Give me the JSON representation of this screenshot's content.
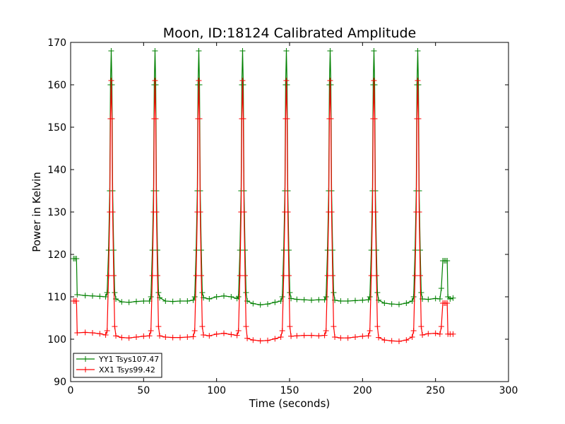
{
  "chart_data": {
    "type": "line",
    "title": "Moon, ID:18124 Calibrated Amplitude",
    "xlabel": "Time (seconds)",
    "ylabel": "Power in Kelvin",
    "xlim": [
      0,
      300
    ],
    "ylim": [
      90,
      170
    ],
    "xticks": [
      0,
      50,
      100,
      150,
      200,
      250,
      300
    ],
    "yticks": [
      90,
      100,
      110,
      120,
      130,
      140,
      150,
      160,
      170
    ],
    "grid": false,
    "legend_position": "lower-left",
    "peak_times": [
      27.5,
      57.5,
      87.5,
      117.5,
      147.5,
      177.5,
      207.5,
      237.5
    ],
    "series": [
      {
        "name": "YY1 Tsys107.47",
        "color": "#008000",
        "marker": "plus",
        "points": [
          [
            2,
            119
          ],
          [
            3,
            119
          ],
          [
            4,
            119
          ],
          [
            4.5,
            110.5
          ],
          [
            10,
            110.3
          ],
          [
            15,
            110.2
          ],
          [
            20,
            110.1
          ],
          [
            24,
            110
          ],
          [
            25,
            111
          ],
          [
            26,
            121
          ],
          [
            26.8,
            135
          ],
          [
            27.3,
            160
          ],
          [
            27.8,
            168
          ],
          [
            28.3,
            160
          ],
          [
            28.8,
            135
          ],
          [
            29.5,
            121
          ],
          [
            30.2,
            111
          ],
          [
            31,
            109.5
          ],
          [
            35,
            108.8
          ],
          [
            40,
            108.7
          ],
          [
            45,
            108.9
          ],
          [
            50,
            109
          ],
          [
            54,
            109
          ],
          [
            55,
            110
          ],
          [
            56,
            121
          ],
          [
            56.8,
            135
          ],
          [
            57.3,
            160
          ],
          [
            57.8,
            168
          ],
          [
            58.3,
            160
          ],
          [
            58.8,
            135
          ],
          [
            59.5,
            121
          ],
          [
            60.2,
            111
          ],
          [
            61,
            109.8
          ],
          [
            65,
            109
          ],
          [
            70,
            108.9
          ],
          [
            75,
            109
          ],
          [
            80,
            109
          ],
          [
            84,
            109.2
          ],
          [
            85,
            110
          ],
          [
            86,
            121
          ],
          [
            86.8,
            135
          ],
          [
            87.3,
            160
          ],
          [
            87.8,
            168
          ],
          [
            88.3,
            160
          ],
          [
            88.8,
            135
          ],
          [
            89.5,
            121
          ],
          [
            90.2,
            111
          ],
          [
            91,
            109.8
          ],
          [
            95,
            109.5
          ],
          [
            100,
            110
          ],
          [
            105,
            110.2
          ],
          [
            110,
            110
          ],
          [
            114,
            109.6
          ],
          [
            115,
            110
          ],
          [
            116,
            121
          ],
          [
            116.8,
            135
          ],
          [
            117.3,
            160
          ],
          [
            117.8,
            168
          ],
          [
            118.3,
            160
          ],
          [
            118.8,
            135
          ],
          [
            119.5,
            121
          ],
          [
            120.2,
            111
          ],
          [
            121,
            109
          ],
          [
            125,
            108.4
          ],
          [
            130,
            108.1
          ],
          [
            135,
            108.3
          ],
          [
            140,
            108.7
          ],
          [
            144,
            109
          ],
          [
            145,
            110
          ],
          [
            146,
            121
          ],
          [
            146.8,
            135
          ],
          [
            147.3,
            160
          ],
          [
            147.8,
            168
          ],
          [
            148.3,
            160
          ],
          [
            148.8,
            135
          ],
          [
            149.5,
            121
          ],
          [
            150.2,
            111
          ],
          [
            151,
            109.6
          ],
          [
            155,
            109.4
          ],
          [
            160,
            109.3
          ],
          [
            165,
            109.2
          ],
          [
            170,
            109.3
          ],
          [
            174,
            109.3
          ],
          [
            175,
            110
          ],
          [
            176,
            121
          ],
          [
            176.8,
            135
          ],
          [
            177.3,
            160
          ],
          [
            177.8,
            168
          ],
          [
            178.3,
            160
          ],
          [
            178.8,
            135
          ],
          [
            179.5,
            121
          ],
          [
            180.2,
            111
          ],
          [
            181,
            109.2
          ],
          [
            185,
            109
          ],
          [
            190,
            109
          ],
          [
            195,
            109.1
          ],
          [
            200,
            109.2
          ],
          [
            204,
            109.3
          ],
          [
            205,
            110
          ],
          [
            206,
            121
          ],
          [
            206.8,
            135
          ],
          [
            207.3,
            160
          ],
          [
            207.8,
            168
          ],
          [
            208.3,
            160
          ],
          [
            208.8,
            135
          ],
          [
            209.5,
            121
          ],
          [
            210.2,
            111
          ],
          [
            211,
            109.2
          ],
          [
            215,
            108.5
          ],
          [
            220,
            108.3
          ],
          [
            225,
            108.2
          ],
          [
            230,
            108.5
          ],
          [
            234,
            109
          ],
          [
            235,
            110
          ],
          [
            236,
            121
          ],
          [
            236.8,
            135
          ],
          [
            237.3,
            160
          ],
          [
            237.8,
            168
          ],
          [
            238.3,
            160
          ],
          [
            238.8,
            135
          ],
          [
            239.5,
            121
          ],
          [
            240.2,
            111
          ],
          [
            241,
            109.5
          ],
          [
            245,
            109.4
          ],
          [
            250,
            109.6
          ],
          [
            253,
            109.5
          ],
          [
            254,
            112
          ],
          [
            255,
            118.5
          ],
          [
            256,
            118.5
          ],
          [
            257,
            118.5
          ],
          [
            258,
            118.5
          ],
          [
            258.5,
            110
          ],
          [
            260,
            109.5
          ],
          [
            262,
            109.7
          ]
        ]
      },
      {
        "name": "XX1 Tsys99.42",
        "color": "#ff0000",
        "marker": "plus",
        "points": [
          [
            2,
            109
          ],
          [
            3,
            109
          ],
          [
            4,
            109
          ],
          [
            4.5,
            101.5
          ],
          [
            10,
            101.6
          ],
          [
            15,
            101.5
          ],
          [
            20,
            101.3
          ],
          [
            24,
            101
          ],
          [
            25,
            102
          ],
          [
            26,
            115
          ],
          [
            26.8,
            130
          ],
          [
            27.3,
            152
          ],
          [
            27.8,
            161
          ],
          [
            28.3,
            152
          ],
          [
            28.8,
            130
          ],
          [
            29.5,
            115
          ],
          [
            30.2,
            103
          ],
          [
            31,
            100.8
          ],
          [
            35,
            100.4
          ],
          [
            40,
            100.3
          ],
          [
            45,
            100.5
          ],
          [
            50,
            100.7
          ],
          [
            54,
            100.8
          ],
          [
            55,
            102
          ],
          [
            56,
            115
          ],
          [
            56.8,
            130
          ],
          [
            57.3,
            152
          ],
          [
            57.8,
            161
          ],
          [
            58.3,
            152
          ],
          [
            58.8,
            130
          ],
          [
            59.5,
            115
          ],
          [
            60.2,
            103
          ],
          [
            61,
            100.8
          ],
          [
            65,
            100.5
          ],
          [
            70,
            100.4
          ],
          [
            75,
            100.4
          ],
          [
            80,
            100.5
          ],
          [
            84,
            100.6
          ],
          [
            85,
            102
          ],
          [
            86,
            115
          ],
          [
            86.8,
            130
          ],
          [
            87.3,
            152
          ],
          [
            87.8,
            161
          ],
          [
            88.3,
            152
          ],
          [
            88.8,
            130
          ],
          [
            89.5,
            115
          ],
          [
            90.2,
            103
          ],
          [
            91,
            101
          ],
          [
            95,
            100.8
          ],
          [
            100,
            101.2
          ],
          [
            105,
            101.4
          ],
          [
            110,
            101.1
          ],
          [
            114,
            100.9
          ],
          [
            115,
            102
          ],
          [
            116,
            115
          ],
          [
            116.8,
            130
          ],
          [
            117.3,
            152
          ],
          [
            117.8,
            161
          ],
          [
            118.3,
            152
          ],
          [
            118.8,
            130
          ],
          [
            119.5,
            115
          ],
          [
            120.2,
            103
          ],
          [
            121,
            100.2
          ],
          [
            125,
            99.8
          ],
          [
            130,
            99.6
          ],
          [
            135,
            99.7
          ],
          [
            140,
            100.1
          ],
          [
            144,
            100.5
          ],
          [
            145,
            102
          ],
          [
            146,
            115
          ],
          [
            146.8,
            130
          ],
          [
            147.3,
            152
          ],
          [
            147.8,
            161
          ],
          [
            148.3,
            152
          ],
          [
            148.8,
            130
          ],
          [
            149.5,
            115
          ],
          [
            150.2,
            103
          ],
          [
            151,
            100.7
          ],
          [
            155,
            100.8
          ],
          [
            160,
            100.9
          ],
          [
            165,
            100.9
          ],
          [
            170,
            100.8
          ],
          [
            174,
            100.9
          ],
          [
            175,
            102
          ],
          [
            176,
            115
          ],
          [
            176.8,
            130
          ],
          [
            177.3,
            152
          ],
          [
            177.8,
            161
          ],
          [
            178.3,
            152
          ],
          [
            178.8,
            130
          ],
          [
            179.5,
            115
          ],
          [
            180.2,
            103
          ],
          [
            181,
            100.5
          ],
          [
            185,
            100.3
          ],
          [
            190,
            100.3
          ],
          [
            195,
            100.5
          ],
          [
            200,
            100.7
          ],
          [
            204,
            100.8
          ],
          [
            205,
            102
          ],
          [
            206,
            115
          ],
          [
            206.8,
            130
          ],
          [
            207.3,
            152
          ],
          [
            207.8,
            161
          ],
          [
            208.3,
            152
          ],
          [
            208.8,
            130
          ],
          [
            209.5,
            115
          ],
          [
            210.2,
            103
          ],
          [
            211,
            100.4
          ],
          [
            215,
            99.8
          ],
          [
            220,
            99.6
          ],
          [
            225,
            99.5
          ],
          [
            230,
            99.8
          ],
          [
            234,
            100.5
          ],
          [
            235,
            102
          ],
          [
            236,
            115
          ],
          [
            236.8,
            130
          ],
          [
            237.3,
            152
          ],
          [
            237.8,
            161
          ],
          [
            238.3,
            152
          ],
          [
            238.8,
            130
          ],
          [
            239.5,
            115
          ],
          [
            240.2,
            103
          ],
          [
            241,
            101
          ],
          [
            245,
            101.3
          ],
          [
            250,
            101.4
          ],
          [
            253,
            101.2
          ],
          [
            254,
            103
          ],
          [
            255,
            108.5
          ],
          [
            256,
            108.5
          ],
          [
            257,
            108.5
          ],
          [
            258,
            108.5
          ],
          [
            258.5,
            101.2
          ],
          [
            260,
            101.2
          ],
          [
            262,
            101.2
          ]
        ]
      }
    ]
  }
}
